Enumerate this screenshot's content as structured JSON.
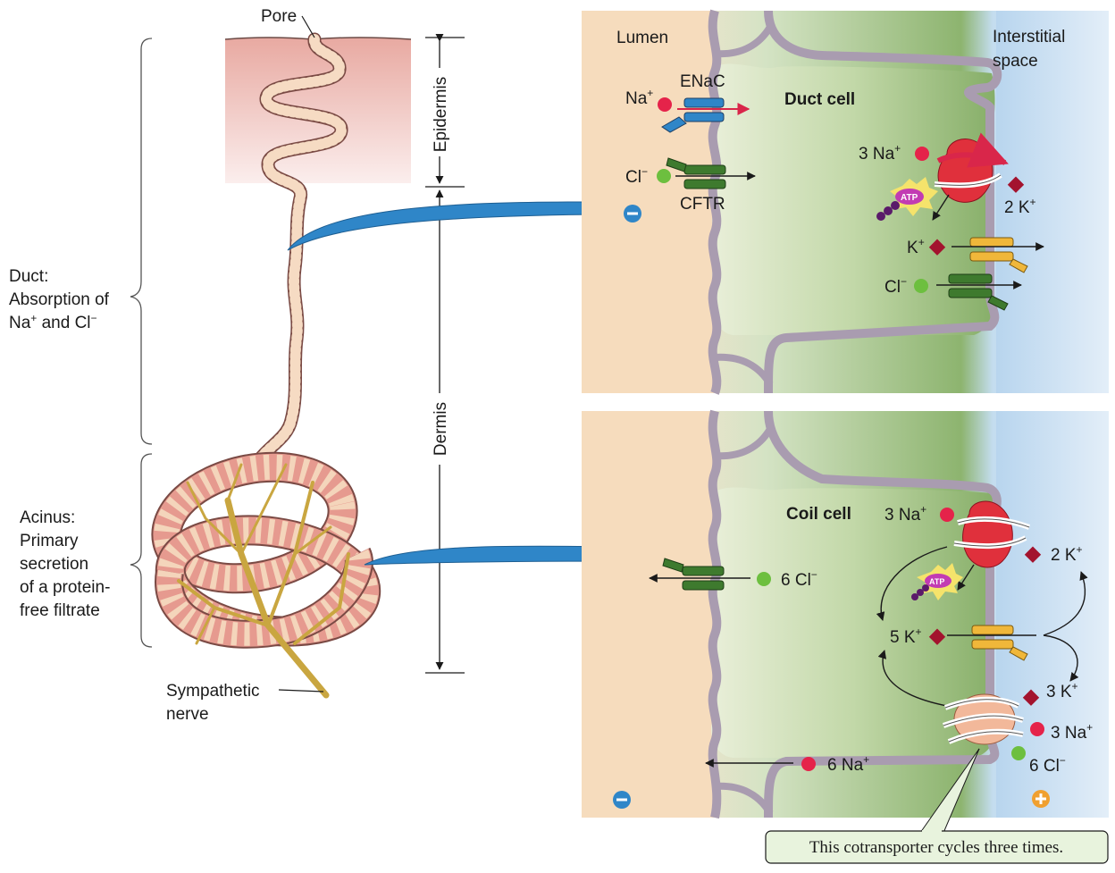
{
  "gland": {
    "pore": "Pore",
    "sympathetic_1": "Sympathetic",
    "sympathetic_2": "nerve"
  },
  "regions": {
    "epidermis": "Epidermis",
    "dermis": "Dermis"
  },
  "duct_caption": {
    "l1": "Duct:",
    "l2": "Absorption of",
    "l3_a": "Na",
    "l3_sup": "+",
    "l3_b": " and Cl",
    "l3_sup2": "−"
  },
  "acinus_caption": {
    "l1": "Acinus:",
    "l2": "Primary",
    "l3": "secretion",
    "l4": "of a protein-",
    "l5": "free filtrate"
  },
  "top_panel": {
    "lumen": "Lumen",
    "interstitial_1": "Interstitial",
    "interstitial_2": "space",
    "cell": "Duct cell",
    "enac": "ENaC",
    "cftr": "CFTR",
    "na": "Na",
    "cl": "Cl",
    "na3": "3 Na",
    "k2": "2 K",
    "k": "K",
    "cl2": "Cl",
    "atp": "ATP",
    "plus": "+",
    "minus": "−"
  },
  "bottom_panel": {
    "cell": "Coil cell",
    "na3": "3 Na",
    "k2": "2 K",
    "cl6": "6 Cl",
    "k5": "5 K",
    "k3": "3 K",
    "na3b": "3 Na",
    "cl6b": "6 Cl",
    "na6": "6 Na",
    "atp": "ATP",
    "plus": "+",
    "minus": "−"
  },
  "callout": "This cotransporter cycles three times.",
  "colors": {
    "lumen": "#f5dcc0",
    "interstitial": "#cfe3f3",
    "cell": "#a9c98a",
    "membrane": "#9b8fa3",
    "sodium": "#e5234a",
    "chloride": "#6dbf3f",
    "potassium": "#a3132e",
    "arrow_blue": "#2f86c8",
    "gland": "#e9a59b"
  }
}
